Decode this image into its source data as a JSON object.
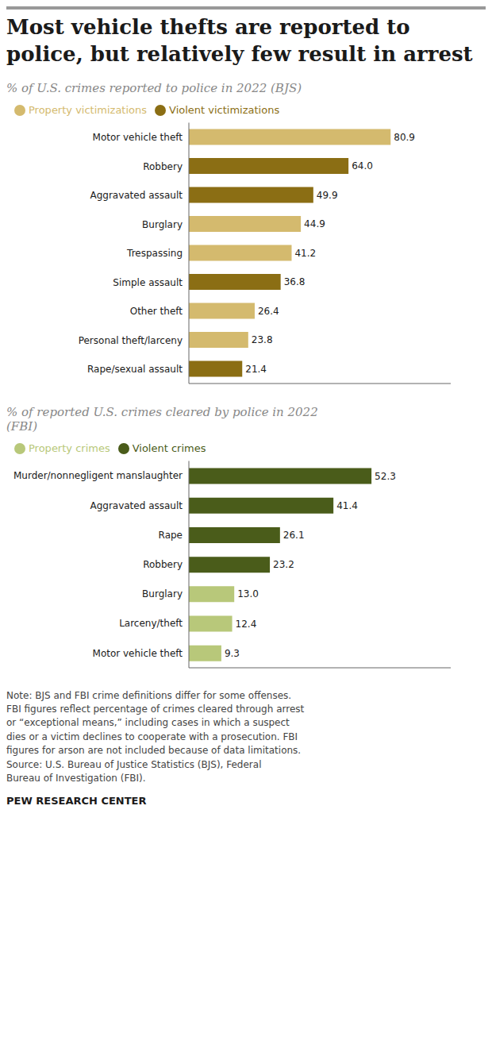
{
  "title": "Most vehicle thefts are reported to police, but relatively few result in arrest",
  "annotations": [
    "Note: BJS and FBI crime definitions differ for some offenses.\nFBI figures reflect percentage of crimes cleared through arrest\nor “exceptional means,” including cases in which a suspect\ndies or a victim declines to cooperate with a prosecution. FBI\nfigures for arson are not included because of data limitations.\nSource: U.S. Bureau of Justice Statistics (BJS), Federal\nBureau of Investigation (FBI).",
    "PEW RESEARCH CENTER"
  ],
  "chart_data": [
    {
      "type": "bar",
      "orientation": "horizontal",
      "stacked": true,
      "data_labels": true,
      "tick_labels": "y",
      "legend": "top",
      "subtitle": "% of U.S. crimes reported to police in 2022 (BJS)",
      "categories": [
        "Motor vehicle theft",
        "Robbery",
        "Aggravated assault",
        "Burglary",
        "Trespassing",
        "Simple assault",
        "Other theft",
        "Personal theft/larceny",
        "Rape/sexual assault"
      ],
      "xlim": [
        0,
        105
      ],
      "series": [
        {
          "name": "Violent victimizations",
          "color": "#8B6E14",
          "values": [
            null,
            64.0,
            49.9,
            null,
            null,
            36.8,
            null,
            null,
            21.4
          ],
          "value_labels": [
            null,
            "64.0",
            "49.9",
            null,
            null,
            "36.8",
            null,
            null,
            "21.4"
          ]
        },
        {
          "name": "Property victimizations",
          "color": "#D4BA6E",
          "values": [
            80.9,
            null,
            null,
            44.9,
            41.2,
            null,
            26.4,
            23.8,
            null
          ],
          "value_labels": [
            "80.9",
            null,
            null,
            "44.9",
            "41.2",
            null,
            "26.4",
            "23.8",
            null
          ]
        }
      ]
    },
    {
      "type": "bar",
      "orientation": "horizontal",
      "stacked": true,
      "data_labels": true,
      "tick_labels": "y",
      "legend": "top",
      "subtitle": "% of reported U.S. crimes cleared by police in 2022 (FBI)",
      "categories": [
        "Murder/nonnegligent manslaughter",
        "Aggravated assault",
        "Rape",
        "Robbery",
        "Burglary",
        "Larceny/theft",
        "Motor vehicle theft"
      ],
      "xlim": [
        0,
        75
      ],
      "series": [
        {
          "name": "Violent crimes",
          "color": "#4A5C1A",
          "values": [
            52.3,
            41.4,
            26.1,
            23.2,
            null,
            null,
            null
          ],
          "value_labels": [
            "52.3",
            "41.4",
            "26.1",
            "23.2",
            null,
            null,
            null
          ]
        },
        {
          "name": "Property crimes",
          "color": "#B8C87A",
          "values": [
            null,
            null,
            null,
            null,
            13.0,
            12.4,
            9.3
          ],
          "value_labels": [
            null,
            null,
            null,
            null,
            "13.0",
            "12.4",
            "9.3"
          ]
        }
      ]
    }
  ]
}
